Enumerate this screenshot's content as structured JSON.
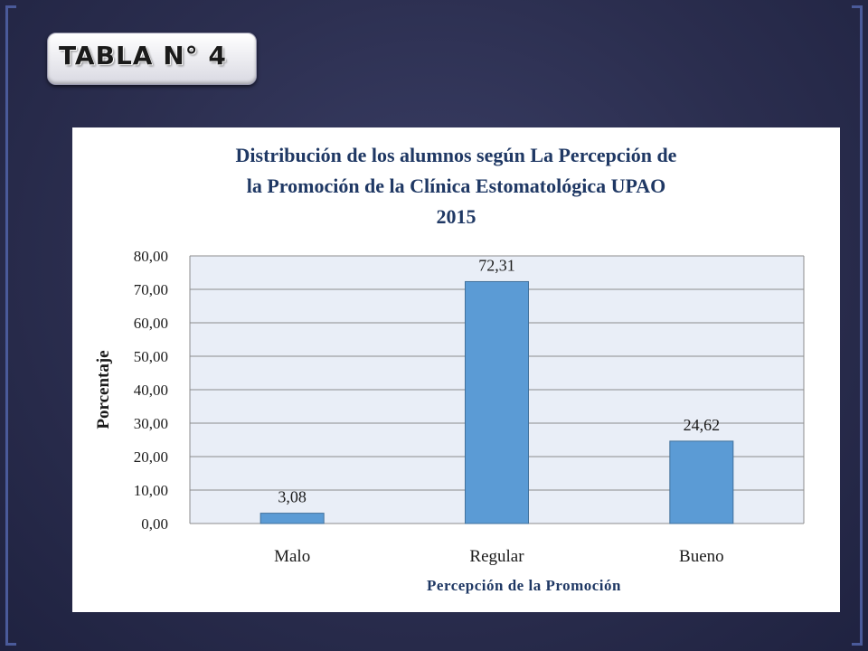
{
  "slide": {
    "heading": "TABLA N° 4"
  },
  "chart_data": {
    "type": "bar",
    "title_lines": [
      "Distribución de los alumnos según La Percepción de",
      "la Promoción de la Clínica Estomatológica UPAO",
      "2015"
    ],
    "categories": [
      "Malo",
      "Regular",
      "Bueno"
    ],
    "values": [
      3.08,
      72.31,
      24.62
    ],
    "data_labels": [
      "3,08",
      "72,31",
      "24,62"
    ],
    "xlabel": "Percepción de la Promoción",
    "ylabel": "Porcentaje",
    "ylim": [
      0,
      80
    ],
    "yticks": [
      "0,00",
      "10,00",
      "20,00",
      "30,00",
      "40,00",
      "50,00",
      "60,00",
      "70,00",
      "80,00"
    ],
    "grid": true,
    "legend": "none",
    "colors": {
      "bar": "#5b9bd5",
      "bar_edge": "#41719c",
      "plot_background": "#e9eef7",
      "grid": "#8c8c8c",
      "title": "#1f3864",
      "xlabel": "#1f3864"
    }
  }
}
